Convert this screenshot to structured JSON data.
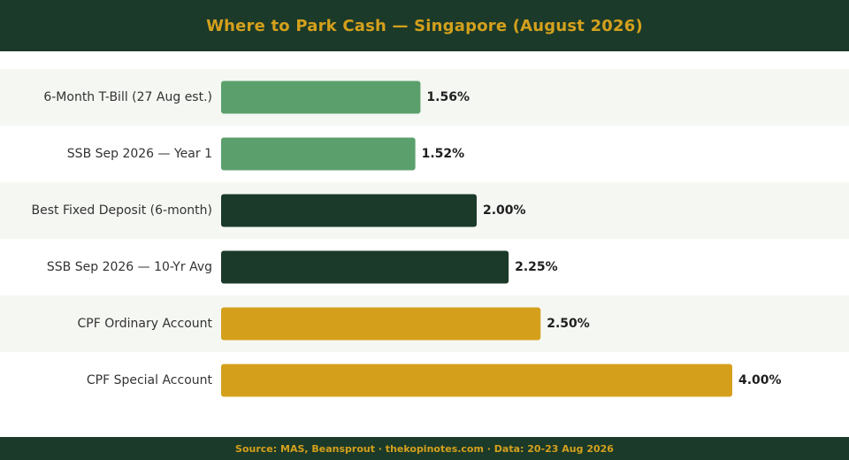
{
  "header": {
    "title": "Where to Park Cash — Singapore (August 2026)"
  },
  "footer": {
    "source": "Source: MAS, Beansprout · thekopinotes.com · Data: 20-23 Aug 2026"
  },
  "colors": {
    "header_bg": "#1b3a29",
    "accent_gold": "#d4a01c",
    "row_alt_bg": "#f5f7f3",
    "label_text": "#333333",
    "value_text": "#1f1f1f"
  },
  "chart_data": {
    "type": "bar",
    "orientation": "horizontal",
    "title": "Where to Park Cash — Singapore (August 2026)",
    "categories": [
      "6-Month T-Bill (27 Aug est.)",
      "SSB Sep 2026 — Year 1",
      "Best Fixed Deposit (6-month)",
      "SSB Sep 2026 — 10-Yr Avg",
      "CPF Ordinary Account",
      "CPF Special Account"
    ],
    "values": [
      1.56,
      1.52,
      2.0,
      2.25,
      2.5,
      4.0
    ],
    "value_labels": [
      "1.56%",
      "1.52%",
      "2.00%",
      "2.25%",
      "2.50%",
      "4.00%"
    ],
    "bar_colors": [
      "#5ba06c",
      "#5ba06c",
      "#1b3a29",
      "#1b3a29",
      "#d4a01c",
      "#d4a01c"
    ],
    "xlim": [
      0,
      4.0
    ],
    "xlabel": "",
    "ylabel": "",
    "grid": false,
    "legend": "none"
  }
}
